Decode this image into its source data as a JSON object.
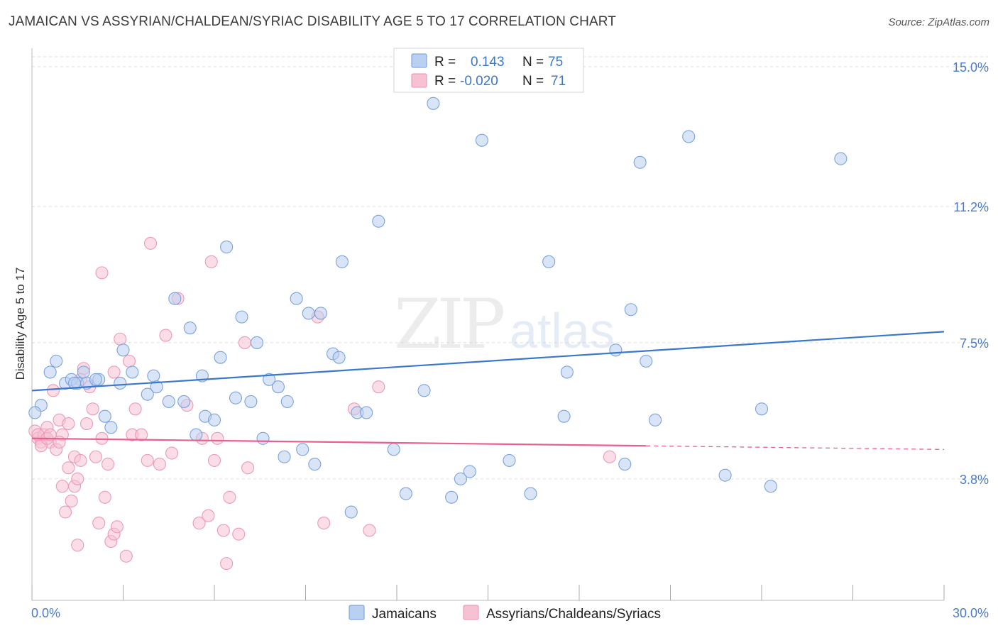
{
  "title": "JAMAICAN VS ASSYRIAN/CHALDEAN/SYRIAC DISABILITY AGE 5 TO 17 CORRELATION CHART",
  "source": "Source: ZipAtlas.com",
  "colors": {
    "blue": "#3a78cc",
    "blue_fill": "#b9d0f1",
    "pink": "#e8608f",
    "pink_fill": "#f6c1d3",
    "grid": "#dddddd",
    "tick_label": "#4a7cc8"
  },
  "legend": {
    "r_label": "R =",
    "n_label": "N =",
    "rows": [
      {
        "r": "0.143",
        "n": "75"
      },
      {
        "r": "-0.020",
        "n": "71"
      }
    ]
  },
  "chart_data": {
    "type": "scatter",
    "title": "JAMAICAN VS ASSYRIAN/CHALDEAN/SYRIAC DISABILITY AGE 5 TO 17 CORRELATION CHART",
    "xlabel": "",
    "ylabel": "Disability Age 5 to 17",
    "xlim": [
      0,
      30
    ],
    "ylim": [
      0.5,
      15.5
    ],
    "x_tick_labels": [
      "0.0%",
      "30.0%"
    ],
    "y_ticks": [
      3.8,
      7.5,
      11.2,
      15.0
    ],
    "y_tick_labels": [
      "3.8%",
      "7.5%",
      "11.2%",
      "15.0%"
    ],
    "grid": true,
    "legend_position": "top-center",
    "series": [
      {
        "name": "Jamaicans",
        "trend": {
          "x0": 0,
          "y0": 6.2,
          "x1": 30,
          "y1": 7.8,
          "dashed_from": null
        },
        "points": [
          [
            0.3,
            5.8
          ],
          [
            0.6,
            6.7
          ],
          [
            0.8,
            7.0
          ],
          [
            1.1,
            6.4
          ],
          [
            1.3,
            6.5
          ],
          [
            1.5,
            6.4
          ],
          [
            1.7,
            6.7
          ],
          [
            1.8,
            6.4
          ],
          [
            2.2,
            6.5
          ],
          [
            2.4,
            5.5
          ],
          [
            2.6,
            5.2
          ],
          [
            2.9,
            6.4
          ],
          [
            3.0,
            7.3
          ],
          [
            3.3,
            6.7
          ],
          [
            3.8,
            6.1
          ],
          [
            4.0,
            6.6
          ],
          [
            4.1,
            6.3
          ],
          [
            4.5,
            5.9
          ],
          [
            4.7,
            8.7
          ],
          [
            5.0,
            5.9
          ],
          [
            5.2,
            7.9
          ],
          [
            5.4,
            5.0
          ],
          [
            5.6,
            6.6
          ],
          [
            5.7,
            5.5
          ],
          [
            6.0,
            5.4
          ],
          [
            6.2,
            7.1
          ],
          [
            6.4,
            10.1
          ],
          [
            6.7,
            6.0
          ],
          [
            6.9,
            8.2
          ],
          [
            7.2,
            5.9
          ],
          [
            7.4,
            7.5
          ],
          [
            7.6,
            4.9
          ],
          [
            7.8,
            6.5
          ],
          [
            8.1,
            6.3
          ],
          [
            8.3,
            4.4
          ],
          [
            8.4,
            5.9
          ],
          [
            8.7,
            8.7
          ],
          [
            8.9,
            4.6
          ],
          [
            9.1,
            8.3
          ],
          [
            9.3,
            4.2
          ],
          [
            9.5,
            8.3
          ],
          [
            9.9,
            7.2
          ],
          [
            10.1,
            7.1
          ],
          [
            10.2,
            9.7
          ],
          [
            10.5,
            2.9
          ],
          [
            10.7,
            5.6
          ],
          [
            11.0,
            5.6
          ],
          [
            11.4,
            10.8
          ],
          [
            11.9,
            4.6
          ],
          [
            12.3,
            3.4
          ],
          [
            12.9,
            6.2
          ],
          [
            13.2,
            14.0
          ],
          [
            13.8,
            3.3
          ],
          [
            14.1,
            3.8
          ],
          [
            14.4,
            4.0
          ],
          [
            14.8,
            13.0
          ],
          [
            15.7,
            4.3
          ],
          [
            16.4,
            3.4
          ],
          [
            17.0,
            9.7
          ],
          [
            17.5,
            5.5
          ],
          [
            17.6,
            6.7
          ],
          [
            19.2,
            7.3
          ],
          [
            19.5,
            4.2
          ],
          [
            19.7,
            8.4
          ],
          [
            20.0,
            12.4
          ],
          [
            20.2,
            7.0
          ],
          [
            20.5,
            5.4
          ],
          [
            21.6,
            13.1
          ],
          [
            22.8,
            3.9
          ],
          [
            24.0,
            5.7
          ],
          [
            24.3,
            3.6
          ],
          [
            26.6,
            12.5
          ],
          [
            0.1,
            5.6
          ],
          [
            1.4,
            6.4
          ],
          [
            2.1,
            6.5
          ]
        ]
      },
      {
        "name": "Assyrians/Chaldeans/Syriacs",
        "trend": {
          "x0": 0,
          "y0": 4.9,
          "x1": 30,
          "y1": 4.6,
          "dashed_from": 20.2
        },
        "points": [
          [
            0.1,
            5.1
          ],
          [
            0.2,
            4.9
          ],
          [
            0.3,
            4.8
          ],
          [
            0.4,
            5.0
          ],
          [
            0.5,
            5.2
          ],
          [
            0.6,
            4.8
          ],
          [
            0.7,
            6.2
          ],
          [
            0.8,
            4.6
          ],
          [
            0.9,
            5.4
          ],
          [
            1.0,
            5.0
          ],
          [
            1.0,
            3.6
          ],
          [
            1.1,
            2.9
          ],
          [
            1.2,
            4.1
          ],
          [
            1.3,
            3.2
          ],
          [
            1.4,
            4.4
          ],
          [
            1.4,
            3.6
          ],
          [
            1.5,
            3.8
          ],
          [
            1.5,
            2.0
          ],
          [
            1.6,
            4.3
          ],
          [
            1.7,
            6.8
          ],
          [
            1.8,
            5.3
          ],
          [
            1.9,
            6.3
          ],
          [
            2.0,
            5.7
          ],
          [
            2.1,
            4.4
          ],
          [
            2.2,
            2.6
          ],
          [
            2.3,
            4.9
          ],
          [
            2.3,
            9.4
          ],
          [
            2.4,
            3.3
          ],
          [
            2.5,
            4.2
          ],
          [
            2.6,
            2.1
          ],
          [
            2.7,
            2.3
          ],
          [
            2.7,
            6.7
          ],
          [
            2.8,
            2.5
          ],
          [
            2.9,
            7.6
          ],
          [
            3.1,
            1.7
          ],
          [
            3.2,
            7.0
          ],
          [
            3.3,
            5.0
          ],
          [
            3.4,
            5.7
          ],
          [
            3.6,
            5.0
          ],
          [
            3.8,
            4.3
          ],
          [
            3.9,
            10.2
          ],
          [
            4.2,
            4.2
          ],
          [
            4.4,
            7.7
          ],
          [
            4.6,
            4.5
          ],
          [
            4.8,
            8.7
          ],
          [
            5.1,
            5.8
          ],
          [
            5.5,
            2.6
          ],
          [
            5.6,
            4.9
          ],
          [
            5.8,
            2.8
          ],
          [
            5.9,
            9.7
          ],
          [
            6.0,
            4.3
          ],
          [
            6.1,
            4.9
          ],
          [
            6.3,
            2.4
          ],
          [
            6.4,
            1.5
          ],
          [
            6.5,
            3.3
          ],
          [
            6.8,
            2.3
          ],
          [
            7.0,
            7.5
          ],
          [
            7.1,
            4.1
          ],
          [
            9.4,
            8.2
          ],
          [
            9.6,
            2.6
          ],
          [
            10.6,
            5.7
          ],
          [
            11.1,
            2.4
          ],
          [
            11.4,
            6.3
          ],
          [
            0.2,
            5.0
          ],
          [
            0.3,
            4.7
          ],
          [
            0.5,
            4.9
          ],
          [
            0.6,
            5.0
          ],
          [
            0.9,
            4.8
          ],
          [
            1.2,
            5.3
          ],
          [
            19.0,
            4.4
          ],
          [
            1.6,
            6.5
          ]
        ]
      }
    ]
  },
  "bottom_legend": [
    "Jamaicans",
    "Assyrians/Chaldeans/Syriacs"
  ],
  "watermark": "ZIPatlas"
}
